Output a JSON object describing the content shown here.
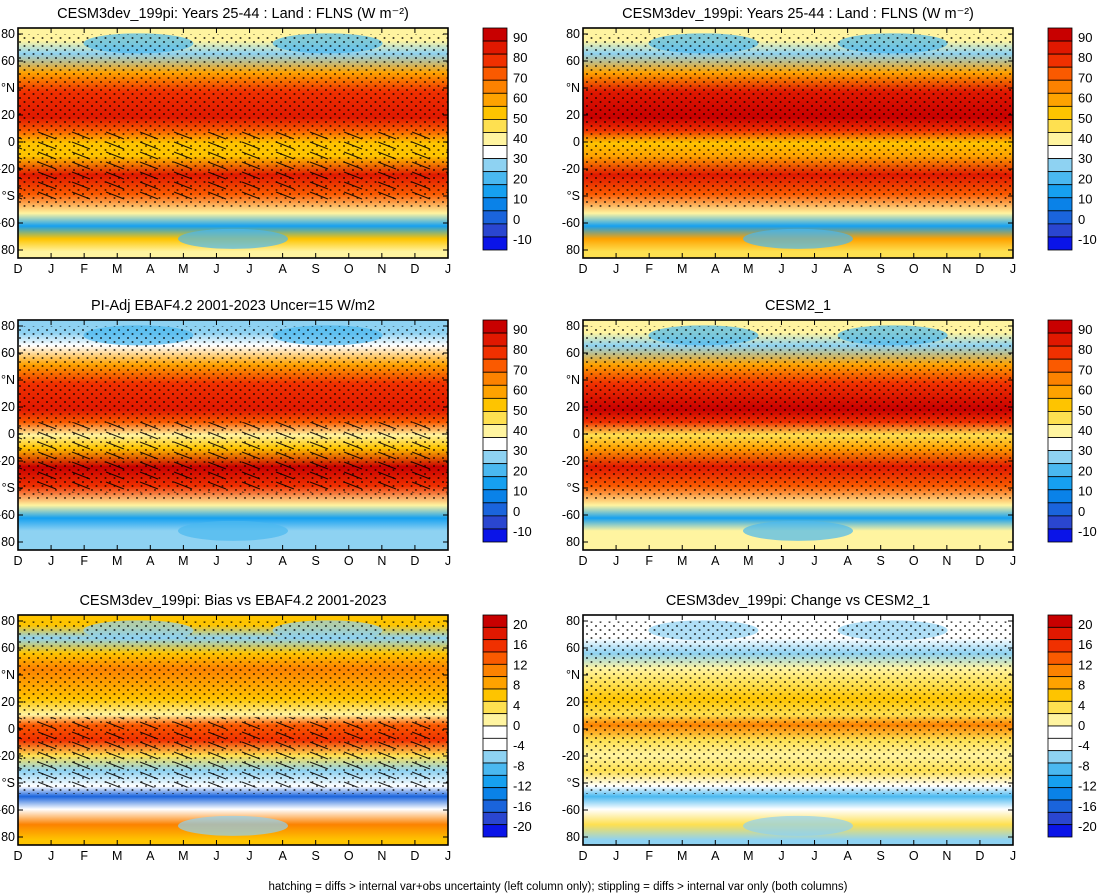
{
  "footer": "hatching = diffs > internal var+obs uncertainty (left column only); stippling = diffs > internal var only (both columns)",
  "colormaps": {
    "abs": {
      "labels": [
        "90",
        "80",
        "70",
        "60",
        "50",
        "40",
        "30",
        "20",
        "10",
        "0",
        "-10"
      ],
      "colors": [
        "#c80000",
        "#e01800",
        "#f03000",
        "#fa5a00",
        "#fc8200",
        "#fea200",
        "#fec400",
        "#fee050",
        "#fff4a0",
        "#ffffff",
        "#8ed2f2",
        "#4ab8f0",
        "#16a0f0",
        "#0a82e8",
        "#1a64dc",
        "#2a46d0",
        "#0a14e8"
      ]
    },
    "diff": {
      "labels": [
        "20",
        "16",
        "12",
        "8",
        "4",
        "0",
        "-4",
        "-8",
        "-12",
        "-16",
        "-20"
      ],
      "colors": [
        "#c80000",
        "#e01800",
        "#f03000",
        "#fa5a00",
        "#fc8200",
        "#fea200",
        "#fec400",
        "#fee050",
        "#fff4a0",
        "#ffffff",
        "#ffffff",
        "#8ed2f2",
        "#4ab8f0",
        "#16a0f0",
        "#0a82e8",
        "#1a64dc",
        "#2a46d0",
        "#0a14e8"
      ]
    }
  },
  "chart_data": [
    {
      "type": "heatmap",
      "title": "CESM3dev_199pi: Years 25-44 : Land : FLNS (W m⁻²)",
      "x_ticks": [
        "D",
        "J",
        "F",
        "M",
        "A",
        "M",
        "J",
        "J",
        "A",
        "S",
        "O",
        "N",
        "D",
        "J"
      ],
      "y_ticks": [
        "80",
        "60",
        "°N",
        "20",
        "0",
        "-20",
        "°S",
        "-60",
        "80"
      ],
      "value_units": "W m⁻²",
      "colorbar": "abs",
      "lat_profile": [
        {
          "lat": 80,
          "value": 38
        },
        {
          "lat": 70,
          "value": 25
        },
        {
          "lat": 55,
          "value": 58
        },
        {
          "lat": 40,
          "value": 82
        },
        {
          "lat": 20,
          "value": 88
        },
        {
          "lat": 10,
          "value": 75
        },
        {
          "lat": 0,
          "value": 50
        },
        {
          "lat": -10,
          "value": 55
        },
        {
          "lat": -25,
          "value": 85
        },
        {
          "lat": -40,
          "value": 70
        },
        {
          "lat": -55,
          "value": 40
        },
        {
          "lat": -65,
          "value": 15
        },
        {
          "lat": -75,
          "value": 55
        },
        {
          "lat": -85,
          "value": 40
        }
      ],
      "hatching": true,
      "stippling": true
    },
    {
      "type": "heatmap",
      "title": "CESM3dev_199pi: Years 25-44 : Land : FLNS (W m⁻²)",
      "x_ticks": [
        "D",
        "J",
        "F",
        "M",
        "A",
        "M",
        "J",
        "J",
        "A",
        "S",
        "O",
        "N",
        "D",
        "J"
      ],
      "y_ticks": [
        "80",
        "60",
        "°N",
        "20",
        "0",
        "-20",
        "°S",
        "-60",
        "80"
      ],
      "value_units": "W m⁻²",
      "colorbar": "abs",
      "lat_profile": [
        {
          "lat": 80,
          "value": 40
        },
        {
          "lat": 70,
          "value": 30
        },
        {
          "lat": 55,
          "value": 62
        },
        {
          "lat": 40,
          "value": 85
        },
        {
          "lat": 20,
          "value": 90
        },
        {
          "lat": 10,
          "value": 80
        },
        {
          "lat": 0,
          "value": 55
        },
        {
          "lat": -10,
          "value": 60
        },
        {
          "lat": -25,
          "value": 88
        },
        {
          "lat": -40,
          "value": 72
        },
        {
          "lat": -55,
          "value": 42
        },
        {
          "lat": -65,
          "value": 15
        },
        {
          "lat": -75,
          "value": 60
        },
        {
          "lat": -85,
          "value": 45
        }
      ],
      "hatching": false,
      "stippling": true
    },
    {
      "type": "heatmap",
      "title": "PI-Adj EBAF4.2 2001-2023 Uncer=15 W/m2",
      "x_ticks": [
        "D",
        "J",
        "F",
        "M",
        "A",
        "M",
        "J",
        "J",
        "A",
        "S",
        "O",
        "N",
        "D",
        "J"
      ],
      "y_ticks": [
        "80",
        "60",
        "°N",
        "20",
        "0",
        "-20",
        "°S",
        "-60",
        "80"
      ],
      "value_units": "W/m2",
      "colorbar": "abs",
      "lat_profile": [
        {
          "lat": 80,
          "value": 30
        },
        {
          "lat": 70,
          "value": 35
        },
        {
          "lat": 55,
          "value": 60
        },
        {
          "lat": 40,
          "value": 80
        },
        {
          "lat": 20,
          "value": 88
        },
        {
          "lat": 10,
          "value": 72
        },
        {
          "lat": 0,
          "value": 42
        },
        {
          "lat": -10,
          "value": 50
        },
        {
          "lat": -25,
          "value": 90
        },
        {
          "lat": -40,
          "value": 78
        },
        {
          "lat": -55,
          "value": 40
        },
        {
          "lat": -65,
          "value": 15
        },
        {
          "lat": -75,
          "value": 30
        },
        {
          "lat": -85,
          "value": 25
        }
      ],
      "hatching": true,
      "stippling": true
    },
    {
      "type": "heatmap",
      "title": "CESM2_1",
      "x_ticks": [
        "D",
        "J",
        "F",
        "M",
        "A",
        "M",
        "J",
        "J",
        "A",
        "S",
        "O",
        "N",
        "D",
        "J"
      ],
      "y_ticks": [
        "80",
        "60",
        "°N",
        "20",
        "0",
        "-20",
        "°S",
        "-60",
        "80"
      ],
      "value_units": "W m⁻²",
      "colorbar": "abs",
      "lat_profile": [
        {
          "lat": 80,
          "value": 40
        },
        {
          "lat": 70,
          "value": 28
        },
        {
          "lat": 55,
          "value": 60
        },
        {
          "lat": 40,
          "value": 82
        },
        {
          "lat": 20,
          "value": 90
        },
        {
          "lat": 10,
          "value": 78
        },
        {
          "lat": 0,
          "value": 45
        },
        {
          "lat": -10,
          "value": 58
        },
        {
          "lat": -25,
          "value": 88
        },
        {
          "lat": -40,
          "value": 72
        },
        {
          "lat": -55,
          "value": 40
        },
        {
          "lat": -65,
          "value": 15
        },
        {
          "lat": -75,
          "value": 38
        },
        {
          "lat": -85,
          "value": 38
        }
      ],
      "hatching": false,
      "stippling": true
    },
    {
      "type": "heatmap",
      "title": "CESM3dev_199pi: Bias vs EBAF4.2 2001-2023",
      "x_ticks": [
        "D",
        "J",
        "F",
        "M",
        "A",
        "M",
        "J",
        "J",
        "A",
        "S",
        "O",
        "N",
        "D",
        "J"
      ],
      "y_ticks": [
        "80",
        "60",
        "°N",
        "20",
        "0",
        "-20",
        "°S",
        "-60",
        "80"
      ],
      "value_units": "W m⁻²",
      "colorbar": "diff",
      "lat_profile": [
        {
          "lat": 82,
          "value": 6
        },
        {
          "lat": 72,
          "value": -6
        },
        {
          "lat": 60,
          "value": 5
        },
        {
          "lat": 48,
          "value": 12
        },
        {
          "lat": 36,
          "value": 8
        },
        {
          "lat": 24,
          "value": 5
        },
        {
          "lat": 12,
          "value": 2
        },
        {
          "lat": 4,
          "value": 14
        },
        {
          "lat": -8,
          "value": 16
        },
        {
          "lat": -20,
          "value": 4
        },
        {
          "lat": -32,
          "value": -6
        },
        {
          "lat": -44,
          "value": -4
        },
        {
          "lat": -52,
          "value": -16
        },
        {
          "lat": -62,
          "value": 0
        },
        {
          "lat": -74,
          "value": 12
        },
        {
          "lat": -86,
          "value": 6
        }
      ],
      "hatching": true,
      "stippling": true
    },
    {
      "type": "heatmap",
      "title": "CESM3dev_199pi: Change vs CESM2_1",
      "x_ticks": [
        "D",
        "J",
        "F",
        "M",
        "A",
        "M",
        "J",
        "J",
        "A",
        "S",
        "O",
        "N",
        "D",
        "J"
      ],
      "y_ticks": [
        "80",
        "60",
        "°N",
        "20",
        "0",
        "-20",
        "°S",
        "-60",
        "80"
      ],
      "value_units": "W m⁻²",
      "colorbar": "diff",
      "lat_profile": [
        {
          "lat": 82,
          "value": -4
        },
        {
          "lat": 72,
          "value": 0
        },
        {
          "lat": 60,
          "value": -6
        },
        {
          "lat": 48,
          "value": 2
        },
        {
          "lat": 36,
          "value": 4
        },
        {
          "lat": 24,
          "value": 6
        },
        {
          "lat": 12,
          "value": 4
        },
        {
          "lat": 4,
          "value": 10
        },
        {
          "lat": -8,
          "value": 4
        },
        {
          "lat": -20,
          "value": 2
        },
        {
          "lat": -32,
          "value": 4
        },
        {
          "lat": -44,
          "value": 0
        },
        {
          "lat": -52,
          "value": -8
        },
        {
          "lat": -62,
          "value": 0
        },
        {
          "lat": -74,
          "value": 4
        },
        {
          "lat": -86,
          "value": -6
        }
      ],
      "hatching": false,
      "stippling": true
    }
  ]
}
